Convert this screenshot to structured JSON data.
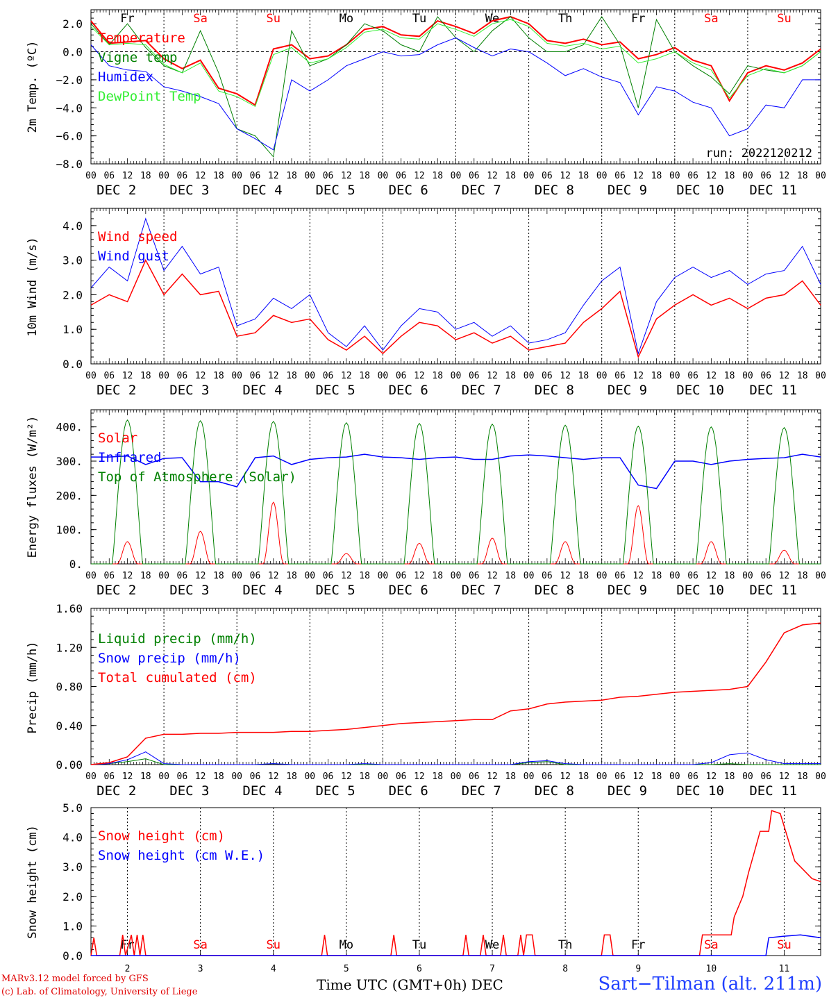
{
  "footer": {
    "credit_line1": "MARv3.12 model forced by GFS",
    "credit_line2": "(c) Lab. of Climatology, University of Liege",
    "x_title": "Time UTC (GMT+0h) DEC",
    "station": "Sart−Tilman (alt. 211m)"
  },
  "chart_data": [
    {
      "type": "line",
      "ylabel": "2m Temp. (ºC)",
      "ylim": [
        -8,
        3
      ],
      "yticks": [
        2.0,
        0.0,
        -2.0,
        -4.0,
        -6.0,
        -8.0
      ],
      "ytick_labels": [
        "2.0",
        "0.0",
        "−2.0",
        "−4.0",
        "−6.0",
        "−8.0"
      ],
      "zero_line": true,
      "run_label": "run: 2022120212",
      "top_day_labels": [
        {
          "text": "Fr",
          "color": "#000000"
        },
        {
          "text": "Sa",
          "color": "#ff0000"
        },
        {
          "text": "Su",
          "color": "#ff0000"
        },
        {
          "text": "Mo",
          "color": "#000000"
        },
        {
          "text": "Tu",
          "color": "#000000"
        },
        {
          "text": "We",
          "color": "#000000"
        },
        {
          "text": "Th",
          "color": "#000000"
        },
        {
          "text": "Fr",
          "color": "#000000"
        },
        {
          "text": "Sa",
          "color": "#ff0000"
        },
        {
          "text": "Su",
          "color": "#ff0000"
        }
      ],
      "x_hours": [
        0,
        6,
        12,
        18,
        24,
        30,
        36,
        42,
        48,
        54,
        60,
        66,
        72,
        78,
        84,
        90,
        96,
        102,
        108,
        114,
        120,
        126,
        132,
        138,
        144,
        150,
        156,
        162,
        168,
        174,
        180,
        186,
        192,
        198,
        204,
        210,
        216,
        222,
        228,
        234,
        240
      ],
      "series": [
        {
          "name": "Temperature",
          "color": "#ff0000",
          "width": 2,
          "values": [
            2.2,
            0.6,
            0.7,
            0.8,
            -0.5,
            -1.2,
            -0.6,
            -2.6,
            -3.0,
            -3.8,
            0.2,
            0.5,
            -0.5,
            -0.3,
            0.5,
            1.6,
            1.8,
            1.2,
            1.1,
            2.2,
            1.8,
            1.3,
            2.2,
            2.5,
            2.0,
            0.8,
            0.6,
            0.9,
            0.5,
            0.7,
            -0.5,
            -0.2,
            0.3,
            -0.6,
            -1.0,
            -3.5,
            -1.5,
            -1.0,
            -1.3,
            -0.8,
            0.2
          ]
        },
        {
          "name": "Vigne temp",
          "color": "#008000",
          "width": 1,
          "values": [
            2.0,
            0.5,
            2.0,
            0.3,
            -1.0,
            -1.5,
            1.5,
            -1.5,
            -5.5,
            -6.0,
            -7.5,
            1.5,
            -1.0,
            -0.5,
            0.5,
            2.0,
            1.5,
            0.5,
            0.0,
            2.5,
            1.0,
            0.0,
            1.5,
            2.5,
            1.0,
            0.0,
            0.0,
            0.5,
            2.5,
            0.5,
            -4.0,
            2.3,
            0.0,
            -1.0,
            -1.8,
            -3.0,
            -1.0,
            -1.3,
            -1.5,
            -1.0,
            0.0
          ]
        },
        {
          "name": "Humidex",
          "color": "#0000ff",
          "width": 1,
          "values": [
            0.5,
            -1.0,
            -1.3,
            -1.4,
            -2.5,
            -2.8,
            -3.2,
            -3.7,
            -5.5,
            -6.2,
            -7.0,
            -2.0,
            -2.8,
            -2.0,
            -1.0,
            -0.5,
            0.0,
            -0.3,
            -0.2,
            0.5,
            1.0,
            0.3,
            -0.3,
            0.2,
            0.0,
            -0.8,
            -1.7,
            -1.2,
            -1.8,
            -2.2,
            -4.5,
            -2.5,
            -2.8,
            -3.6,
            -4.0,
            -6.0,
            -5.5,
            -3.8,
            -4.0,
            -2.0,
            -2.0
          ]
        },
        {
          "name": "DewPoint Temp",
          "color": "#33ee33",
          "width": 1,
          "values": [
            1.8,
            0.5,
            0.6,
            0.5,
            -0.9,
            -1.5,
            -0.8,
            -2.8,
            -3.2,
            -3.9,
            -0.2,
            0.3,
            -0.8,
            -0.5,
            0.3,
            1.4,
            1.6,
            1.0,
            0.9,
            2.0,
            1.6,
            1.1,
            2.0,
            2.3,
            1.8,
            0.6,
            0.4,
            0.6,
            0.2,
            0.4,
            -0.8,
            -0.5,
            0.0,
            -0.8,
            -1.3,
            -3.3,
            -1.7,
            -1.2,
            -1.5,
            -1.0,
            0.0
          ]
        }
      ]
    },
    {
      "type": "line",
      "ylabel": "10m Wind (m/s)",
      "ylim": [
        0,
        4.5
      ],
      "yticks": [
        0,
        1,
        2,
        3,
        4
      ],
      "ytick_labels": [
        "0.0",
        "1.0",
        "2.0",
        "3.0",
        "4.0"
      ],
      "x_hours": [
        0,
        6,
        12,
        18,
        24,
        30,
        36,
        42,
        48,
        54,
        60,
        66,
        72,
        78,
        84,
        90,
        96,
        102,
        108,
        114,
        120,
        126,
        132,
        138,
        144,
        150,
        156,
        162,
        168,
        174,
        180,
        186,
        192,
        198,
        204,
        210,
        216,
        222,
        228,
        234,
        240
      ],
      "series": [
        {
          "name": "Wind speed",
          "color": "#ff0000",
          "width": 1.5,
          "values": [
            1.7,
            2.0,
            1.8,
            3.0,
            2.0,
            2.6,
            2.0,
            2.1,
            0.8,
            0.9,
            1.4,
            1.2,
            1.3,
            0.7,
            0.4,
            0.8,
            0.3,
            0.8,
            1.2,
            1.1,
            0.7,
            0.9,
            0.6,
            0.8,
            0.4,
            0.5,
            0.6,
            1.2,
            1.6,
            2.1,
            0.2,
            1.3,
            1.7,
            2.0,
            1.7,
            1.9,
            1.6,
            1.9,
            2.0,
            2.4,
            1.7
          ]
        },
        {
          "name": "Wind gust",
          "color": "#0000ff",
          "width": 1,
          "values": [
            2.2,
            2.8,
            2.4,
            4.2,
            2.7,
            3.4,
            2.6,
            2.8,
            1.1,
            1.3,
            1.9,
            1.6,
            2.0,
            0.9,
            0.5,
            1.1,
            0.4,
            1.1,
            1.6,
            1.5,
            1.0,
            1.2,
            0.8,
            1.1,
            0.6,
            0.7,
            0.9,
            1.7,
            2.4,
            2.8,
            0.3,
            1.8,
            2.5,
            2.8,
            2.5,
            2.7,
            2.3,
            2.6,
            2.7,
            3.4,
            2.3
          ]
        }
      ]
    },
    {
      "type": "line",
      "ylabel": "Energy fluxes (W/m²)",
      "ylim": [
        0,
        450
      ],
      "yticks": [
        0,
        100,
        200,
        300,
        400
      ],
      "ytick_labels": [
        "0.",
        "100.",
        "200.",
        "300.",
        "400."
      ],
      "x_hours": [
        0,
        6,
        12,
        18,
        24,
        30,
        36,
        42,
        48,
        54,
        60,
        66,
        72,
        78,
        84,
        90,
        96,
        102,
        108,
        114,
        120,
        126,
        132,
        138,
        144,
        150,
        156,
        162,
        168,
        174,
        180,
        186,
        192,
        198,
        204,
        210,
        216,
        222,
        228,
        234,
        240
      ],
      "diurnal_peaks": {
        "Solar": [
          65,
          95,
          180,
          30,
          60,
          75,
          65,
          170,
          65,
          40
        ],
        "Top of Atmosphere (Solar)": [
          420,
          418,
          416,
          412,
          410,
          408,
          405,
          402,
          400,
          398
        ]
      },
      "series": [
        {
          "name": "Solar",
          "color": "#ff0000",
          "width": 1
        },
        {
          "name": "Infrared",
          "color": "#0000ff",
          "width": 1.5,
          "values": [
            312,
            312,
            315,
            290,
            308,
            310,
            240,
            240,
            225,
            310,
            315,
            290,
            305,
            310,
            312,
            320,
            312,
            310,
            305,
            310,
            312,
            305,
            305,
            315,
            318,
            315,
            310,
            305,
            310,
            310,
            230,
            220,
            300,
            300,
            290,
            300,
            305,
            308,
            310,
            320,
            312
          ]
        },
        {
          "name": "Top of Atmosphere (Solar)",
          "color": "#008000",
          "width": 1
        }
      ]
    },
    {
      "type": "line",
      "ylabel": "Precip (mm/h)",
      "ylim": [
        0,
        1.6
      ],
      "yticks": [
        0,
        0.4,
        0.8,
        1.2,
        1.6
      ],
      "ytick_labels": [
        "0.00",
        "0.40",
        "0.80",
        "1.20",
        "1.60"
      ],
      "x_hours": [
        0,
        6,
        12,
        18,
        24,
        30,
        36,
        42,
        48,
        54,
        60,
        66,
        72,
        78,
        84,
        90,
        96,
        102,
        108,
        114,
        120,
        126,
        132,
        138,
        144,
        150,
        156,
        162,
        168,
        174,
        180,
        186,
        192,
        198,
        204,
        210,
        216,
        222,
        228,
        234,
        240
      ],
      "series": [
        {
          "name": "Liquid precip (mm/h)",
          "color": "#008000",
          "width": 1,
          "values": [
            0,
            0.01,
            0.03,
            0.06,
            0,
            0,
            0,
            0,
            0,
            0,
            0.01,
            0,
            0,
            0,
            0,
            0,
            0,
            0,
            0,
            0,
            0,
            0,
            0,
            0,
            0.02,
            0.03,
            0,
            0,
            0,
            0,
            0,
            0,
            0,
            0,
            0,
            0.01,
            0,
            0,
            0,
            0,
            0
          ]
        },
        {
          "name": "Snow precip (mm/h)",
          "color": "#0000ff",
          "width": 1,
          "values": [
            0,
            0.01,
            0.05,
            0.13,
            0.01,
            0,
            0,
            0,
            0,
            0,
            0.01,
            0,
            0,
            0,
            0,
            0.01,
            0,
            0,
            0,
            0,
            0,
            0,
            0,
            0,
            0.03,
            0.04,
            0.01,
            0,
            0,
            0,
            0,
            0,
            0,
            0,
            0.02,
            0.1,
            0.12,
            0.05,
            0.01,
            0.01,
            0.01
          ]
        },
        {
          "name": "Total cumulated (cm)",
          "color": "#ff0000",
          "width": 1.5,
          "values": [
            0,
            0.02,
            0.08,
            0.27,
            0.31,
            0.31,
            0.32,
            0.32,
            0.33,
            0.33,
            0.33,
            0.34,
            0.34,
            0.35,
            0.36,
            0.38,
            0.4,
            0.42,
            0.43,
            0.44,
            0.45,
            0.46,
            0.46,
            0.55,
            0.57,
            0.62,
            0.64,
            0.65,
            0.66,
            0.69,
            0.7,
            0.72,
            0.74,
            0.75,
            0.76,
            0.77,
            0.8,
            1.05,
            1.35,
            1.43,
            1.45
          ]
        }
      ]
    },
    {
      "type": "line",
      "ylabel": "Snow height (cm)",
      "ylim": [
        0,
        5
      ],
      "yticks": [
        0,
        1,
        2,
        3,
        4,
        5
      ],
      "ytick_labels": [
        "0.0",
        "1.0",
        "2.0",
        "3.0",
        "4.0",
        "5.0"
      ],
      "x_tick_labels": [
        "2",
        "3",
        "4",
        "5",
        "6",
        "7",
        "8",
        "9",
        "10",
        "11"
      ],
      "bottom_day_labels": [
        {
          "text": "Fr",
          "color": "#000000"
        },
        {
          "text": "Sa",
          "color": "#ff0000"
        },
        {
          "text": "Su",
          "color": "#ff0000"
        },
        {
          "text": "Mo",
          "color": "#000000"
        },
        {
          "text": "Tu",
          "color": "#000000"
        },
        {
          "text": "We",
          "color": "#000000"
        },
        {
          "text": "Th",
          "color": "#000000"
        },
        {
          "text": "Fr",
          "color": "#000000"
        },
        {
          "text": "Sa",
          "color": "#ff0000"
        },
        {
          "text": "Su",
          "color": "#ff0000"
        }
      ],
      "series": [
        {
          "name": "Snow height (cm)",
          "color": "#ff0000",
          "width": 1.5,
          "points": [
            [
              0,
              0
            ],
            [
              1,
              0.6
            ],
            [
              2,
              0
            ],
            [
              10,
              0
            ],
            [
              11,
              0.7
            ],
            [
              12,
              0
            ],
            [
              14,
              0.7
            ],
            [
              15,
              0
            ],
            [
              16,
              0.7
            ],
            [
              17,
              0
            ],
            [
              18,
              0.7
            ],
            [
              19,
              0
            ],
            [
              80,
              0
            ],
            [
              81,
              0.7
            ],
            [
              82,
              0
            ],
            [
              104,
              0
            ],
            [
              105,
              0.7
            ],
            [
              106,
              0
            ],
            [
              129,
              0
            ],
            [
              130,
              0.7
            ],
            [
              131,
              0
            ],
            [
              135,
              0
            ],
            [
              136,
              0.7
            ],
            [
              137,
              0
            ],
            [
              142,
              0
            ],
            [
              143,
              0.7
            ],
            [
              144,
              0
            ],
            [
              148,
              0
            ],
            [
              149,
              0.7
            ],
            [
              150,
              0
            ],
            [
              151,
              0.7
            ],
            [
              153,
              0.7
            ],
            [
              154,
              0
            ],
            [
              177,
              0
            ],
            [
              178,
              0.7
            ],
            [
              180,
              0.7
            ],
            [
              181,
              0
            ],
            [
              211,
              0
            ],
            [
              212,
              0.7
            ],
            [
              222,
              0.7
            ],
            [
              223,
              1.3
            ],
            [
              226,
              2.0
            ],
            [
              228,
              2.8
            ],
            [
              230,
              3.5
            ],
            [
              232,
              4.2
            ],
            [
              235,
              4.2
            ],
            [
              236,
              4.9
            ],
            [
              239,
              4.8
            ],
            [
              244,
              3.2
            ],
            [
              250,
              2.6
            ],
            [
              253,
              2.5
            ]
          ]
        },
        {
          "name": "Snow height (cm W.E.)",
          "color": "#0000ff",
          "width": 1.5,
          "points": [
            [
              0,
              0
            ],
            [
              234,
              0
            ],
            [
              235,
              0.6
            ],
            [
              240,
              0.65
            ],
            [
              246,
              0.7
            ],
            [
              253,
              0.6
            ]
          ]
        }
      ]
    }
  ],
  "panel_x_axis": {
    "hour_labels": [
      "00",
      "06",
      "12",
      "18"
    ],
    "final_hour_label": "00",
    "dates": [
      "DEC  2",
      "DEC  3",
      "DEC  4",
      "DEC  5",
      "DEC  6",
      "DEC  7",
      "DEC  8",
      "DEC  9",
      "DEC 10",
      "DEC 11"
    ]
  }
}
